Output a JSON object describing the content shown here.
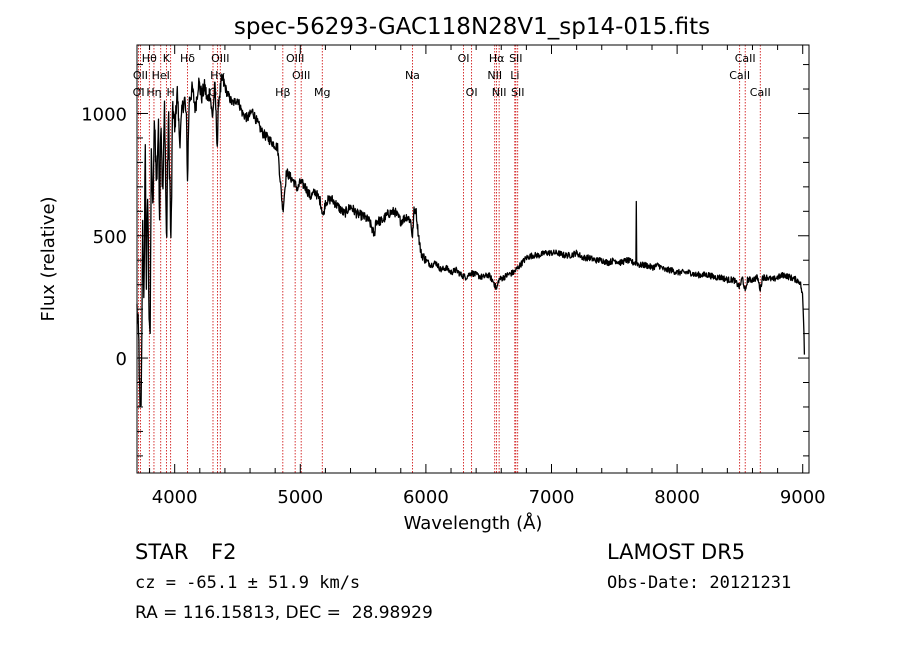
{
  "chart_data": {
    "type": "line",
    "title": "spec-56293-GAC118N28V1_sp14-015.fits",
    "xlabel": "Wavelength (Å)",
    "ylabel": "Flux (relative)",
    "xlim": [
      3700,
      9050
    ],
    "ylim": [
      -470,
      1280
    ],
    "xticks": [
      {
        "v": 4000,
        "label": "4000"
      },
      {
        "v": 5000,
        "label": "5000"
      },
      {
        "v": 6000,
        "label": "6000"
      },
      {
        "v": 7000,
        "label": "7000"
      },
      {
        "v": 8000,
        "label": "8000"
      },
      {
        "v": 9000,
        "label": "9000"
      }
    ],
    "yticks": [
      {
        "v": 0,
        "label": "0"
      },
      {
        "v": 500,
        "label": "500"
      },
      {
        "v": 1000,
        "label": "1000"
      }
    ],
    "xminor_step": 200,
    "yminor_step": 100,
    "grid": false,
    "series_color": "#000000",
    "line_color": "#cc0000",
    "spectrum_anchors": [
      [
        3700,
        200
      ],
      [
        3715,
        50
      ],
      [
        3725,
        -260
      ],
      [
        3735,
        -150
      ],
      [
        3745,
        600
      ],
      [
        3755,
        150
      ],
      [
        3765,
        900
      ],
      [
        3775,
        300
      ],
      [
        3785,
        700
      ],
      [
        3795,
        220
      ],
      [
        3805,
        100
      ],
      [
        3815,
        900
      ],
      [
        3825,
        560
      ],
      [
        3840,
        1000
      ],
      [
        3855,
        700
      ],
      [
        3870,
        950
      ],
      [
        3880,
        600
      ],
      [
        3890,
        1020
      ],
      [
        3905,
        640
      ],
      [
        3920,
        1050
      ],
      [
        3935,
        450
      ],
      [
        3950,
        1000
      ],
      [
        3962,
        700
      ],
      [
        3970,
        450
      ],
      [
        3985,
        1050
      ],
      [
        4000,
        920
      ],
      [
        4020,
        1100
      ],
      [
        4040,
        880
      ],
      [
        4060,
        1020
      ],
      [
        4080,
        1060
      ],
      [
        4095,
        960
      ],
      [
        4102,
        720
      ],
      [
        4115,
        1050
      ],
      [
        4140,
        1100
      ],
      [
        4165,
        1020
      ],
      [
        4190,
        1130
      ],
      [
        4215,
        1070
      ],
      [
        4240,
        1110
      ],
      [
        4260,
        1050
      ],
      [
        4280,
        1090
      ],
      [
        4300,
        980
      ],
      [
        4320,
        1110
      ],
      [
        4340,
        860
      ],
      [
        4350,
        1060
      ],
      [
        4380,
        1140
      ],
      [
        4420,
        1080
      ],
      [
        4460,
        1040
      ],
      [
        4500,
        1060
      ],
      [
        4540,
        1000
      ],
      [
        4580,
        980
      ],
      [
        4620,
        1010
      ],
      [
        4660,
        960
      ],
      [
        4700,
        920
      ],
      [
        4740,
        900
      ],
      [
        4780,
        880
      ],
      [
        4820,
        860
      ],
      [
        4845,
        700
      ],
      [
        4861,
        600
      ],
      [
        4875,
        680
      ],
      [
        4890,
        760
      ],
      [
        4920,
        740
      ],
      [
        4950,
        720
      ],
      [
        4980,
        690
      ],
      [
        5000,
        720
      ],
      [
        5040,
        700
      ],
      [
        5080,
        660
      ],
      [
        5120,
        680
      ],
      [
        5160,
        640
      ],
      [
        5183,
        580
      ],
      [
        5200,
        640
      ],
      [
        5250,
        650
      ],
      [
        5300,
        620
      ],
      [
        5350,
        590
      ],
      [
        5400,
        620
      ],
      [
        5450,
        590
      ],
      [
        5500,
        580
      ],
      [
        5550,
        560
      ],
      [
        5590,
        500
      ],
      [
        5600,
        560
      ],
      [
        5650,
        560
      ],
      [
        5700,
        590
      ],
      [
        5750,
        600
      ],
      [
        5800,
        560
      ],
      [
        5850,
        580
      ],
      [
        5880,
        560
      ],
      [
        5893,
        490
      ],
      [
        5905,
        600
      ],
      [
        5920,
        610
      ],
      [
        5935,
        530
      ],
      [
        5960,
        430
      ],
      [
        6000,
        400
      ],
      [
        6040,
        380
      ],
      [
        6080,
        390
      ],
      [
        6120,
        360
      ],
      [
        6160,
        370
      ],
      [
        6200,
        350
      ],
      [
        6240,
        360
      ],
      [
        6280,
        340
      ],
      [
        6320,
        330
      ],
      [
        6360,
        350
      ],
      [
        6400,
        340
      ],
      [
        6450,
        330
      ],
      [
        6500,
        340
      ],
      [
        6540,
        310
      ],
      [
        6563,
        280
      ],
      [
        6580,
        320
      ],
      [
        6620,
        330
      ],
      [
        6650,
        340
      ],
      [
        6700,
        350
      ],
      [
        6750,
        380
      ],
      [
        6800,
        410
      ],
      [
        6850,
        420
      ],
      [
        6900,
        420
      ],
      [
        6950,
        430
      ],
      [
        7000,
        430
      ],
      [
        7050,
        430
      ],
      [
        7100,
        420
      ],
      [
        7150,
        420
      ],
      [
        7200,
        430
      ],
      [
        7250,
        410
      ],
      [
        7300,
        410
      ],
      [
        7350,
        400
      ],
      [
        7400,
        400
      ],
      [
        7450,
        390
      ],
      [
        7500,
        400
      ],
      [
        7550,
        390
      ],
      [
        7600,
        400
      ],
      [
        7650,
        390
      ],
      [
        7672,
        390
      ],
      [
        7675,
        640
      ],
      [
        7678,
        390
      ],
      [
        7700,
        380
      ],
      [
        7750,
        380
      ],
      [
        7800,
        370
      ],
      [
        7850,
        380
      ],
      [
        7900,
        360
      ],
      [
        7950,
        360
      ],
      [
        8000,
        350
      ],
      [
        8050,
        350
      ],
      [
        8100,
        350
      ],
      [
        8150,
        340
      ],
      [
        8200,
        340
      ],
      [
        8250,
        340
      ],
      [
        8300,
        330
      ],
      [
        8350,
        330
      ],
      [
        8400,
        320
      ],
      [
        8450,
        320
      ],
      [
        8498,
        290
      ],
      [
        8520,
        330
      ],
      [
        8542,
        270
      ],
      [
        8560,
        320
      ],
      [
        8600,
        320
      ],
      [
        8640,
        330
      ],
      [
        8662,
        280
      ],
      [
        8680,
        330
      ],
      [
        8720,
        330
      ],
      [
        8760,
        320
      ],
      [
        8800,
        330
      ],
      [
        8850,
        340
      ],
      [
        8900,
        330
      ],
      [
        8950,
        320
      ],
      [
        8980,
        310
      ],
      [
        9000,
        250
      ],
      [
        9010,
        100
      ],
      [
        9015,
        -30
      ]
    ],
    "line_marks": [
      {
        "name": "Hθ",
        "w": 3798,
        "row": 1
      },
      {
        "name": "OII",
        "w": 3727,
        "row": 2
      },
      {
        "name": "OI",
        "w": 3713,
        "row": 3
      },
      {
        "name": "K",
        "w": 3934,
        "row": 1
      },
      {
        "name": "HeI",
        "w": 3889,
        "row": 2
      },
      {
        "name": "Hη",
        "w": 3835,
        "row": 3
      },
      {
        "name": "H",
        "w": 3968,
        "row": 3
      },
      {
        "name": "Hδ",
        "w": 4102,
        "row": 1
      },
      {
        "name": "OIII",
        "w": 4363,
        "row": 1
      },
      {
        "name": "Hγ",
        "w": 4341,
        "row": 2
      },
      {
        "name": "G",
        "w": 4305,
        "row": 3
      },
      {
        "name": "OIII",
        "w": 4959,
        "row": 1
      },
      {
        "name": "OIII",
        "w": 5007,
        "row": 2
      },
      {
        "name": "Hβ",
        "w": 4861,
        "row": 3
      },
      {
        "name": "Mg",
        "w": 5175,
        "row": 3
      },
      {
        "name": "Na",
        "w": 5893,
        "row": 2
      },
      {
        "name": "OI",
        "w": 6300,
        "row": 1
      },
      {
        "name": "OI",
        "w": 6364,
        "row": 3
      },
      {
        "name": "Hα",
        "w": 6563,
        "row": 1
      },
      {
        "name": "SII",
        "w": 6716,
        "row": 1
      },
      {
        "name": "NII",
        "w": 6548,
        "row": 2
      },
      {
        "name": "Li",
        "w": 6708,
        "row": 2
      },
      {
        "name": "NII",
        "w": 6583,
        "row": 3
      },
      {
        "name": "SII",
        "w": 6731,
        "row": 3
      },
      {
        "name": "CaII",
        "w": 8542,
        "row": 1
      },
      {
        "name": "CaII",
        "w": 8498,
        "row": 2
      },
      {
        "name": "CaII",
        "w": 8662,
        "row": 3
      }
    ]
  },
  "info": {
    "object_class": "STAR",
    "subclass": "F2",
    "survey": "LAMOST DR5",
    "cz_line": "cz = -65.1 ± 51.9 km/s",
    "obs_date_line": "Obs-Date: 20121231",
    "coords_line": "RA = 116.15813, DEC =  28.98929"
  }
}
